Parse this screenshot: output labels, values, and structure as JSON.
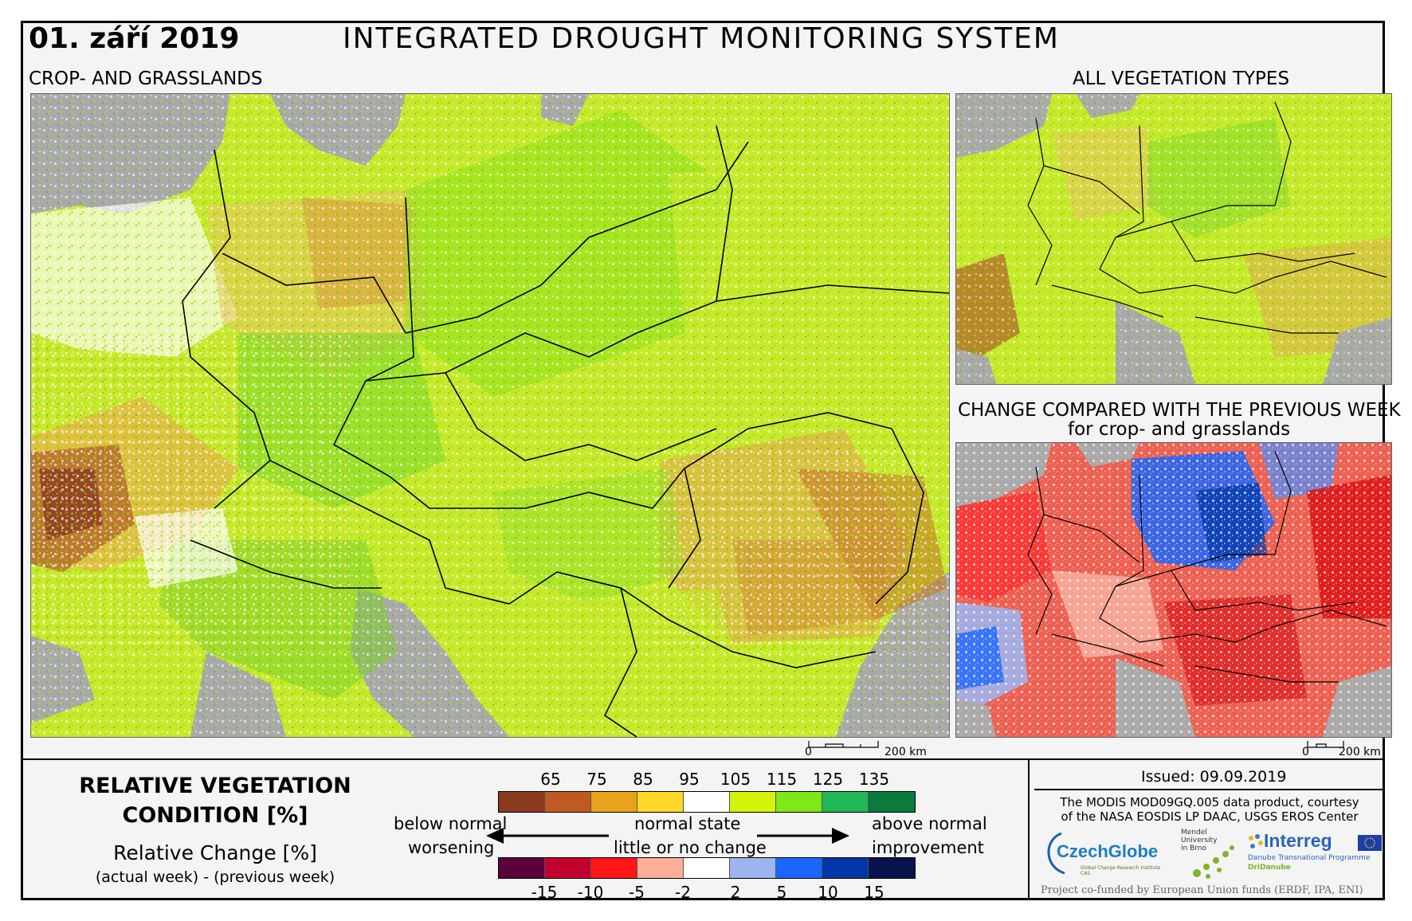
{
  "header": {
    "date": "01. září 2019",
    "title": "INTEGRATED DROUGHT MONITORING SYSTEM"
  },
  "maps": {
    "main_label": "CROP- AND GRASSLANDS",
    "all_label": "ALL VEGETATION TYPES",
    "change_label_1": "CHANGE COMPARED WITH THE PREVIOUS WEEK",
    "change_label_2": "for crop- and grasslands"
  },
  "scalebar": {
    "zero": "0",
    "dist": "200 km"
  },
  "legend": {
    "title_1": "RELATIVE VEGETATION",
    "title_2": "CONDITION [%]",
    "change_title": "Relative Change [%]",
    "change_formula": "(actual week) - (previous week)",
    "condition_ticks": [
      "65",
      "75",
      "85",
      "95",
      "105",
      "115",
      "125",
      "135"
    ],
    "condition_colors": [
      "#8b3a1f",
      "#c05a22",
      "#e8a21c",
      "#ffd72a",
      "#ffffff",
      "#d4f20a",
      "#7ee81a",
      "#22b856",
      "#0b7a3c"
    ],
    "change_ticks": [
      "-15",
      "-10",
      "-5",
      "-2",
      "2",
      "5",
      "10",
      "15"
    ],
    "change_colors": [
      "#5a003a",
      "#c2002e",
      "#ff1616",
      "#ffae9a",
      "#ffffff",
      "#9cb4f0",
      "#1a66ff",
      "#0037a8",
      "#08134e"
    ],
    "below_normal": "below normal",
    "worsening": "worsening",
    "normal_state": "normal state",
    "little_change": "little or no change",
    "above_normal": "above normal",
    "improvement": "improvement"
  },
  "footer": {
    "issued": "Issued: 09.09.2019",
    "credit_1": "The MODIS MOD09GQ.005 data product, courtesy",
    "credit_2": "of the NASA EOSDIS LP DAAC, USGS EROS Center",
    "czechglobe": "CzechGlobe",
    "czechglobe_sub": "Global Change Research Institute CAS",
    "mendel_1": "Mendel",
    "mendel_2": "University",
    "mendel_3": "in Brno",
    "interreg": "Interreg",
    "interreg_sub": "Danube Transnational Programme",
    "dridanube": "DriDanube",
    "funding": "Project co-funded by European Union funds (ERDF, IPA, ENI)"
  }
}
